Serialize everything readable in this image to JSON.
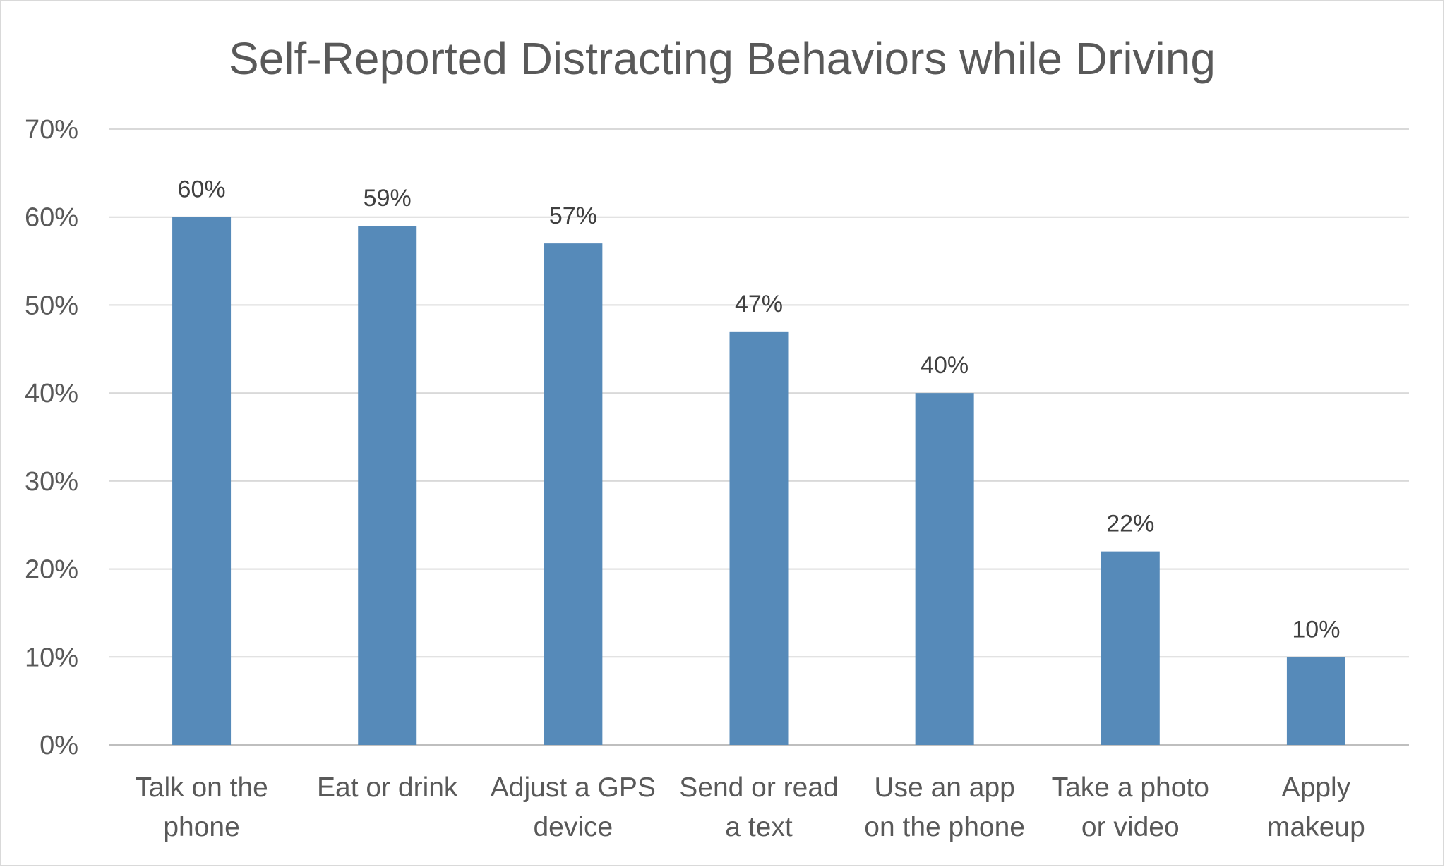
{
  "chart_data": {
    "type": "bar",
    "title": "Self-Reported Distracting Behaviors while Driving",
    "xlabel": "",
    "ylabel": "",
    "categories": [
      [
        "Talk on the",
        "phone"
      ],
      [
        "Eat or drink"
      ],
      [
        "Adjust a GPS",
        "device"
      ],
      [
        "Send or read",
        "a text"
      ],
      [
        "Use an app",
        "on the phone"
      ],
      [
        "Take a photo",
        "or video"
      ],
      [
        "Apply",
        "makeup"
      ]
    ],
    "values": [
      60,
      59,
      57,
      47,
      40,
      22,
      10
    ],
    "data_labels": [
      "60%",
      "59%",
      "57%",
      "47%",
      "40%",
      "22%",
      "10%"
    ],
    "ylim": [
      0,
      70
    ],
    "yticks": [
      0,
      10,
      20,
      30,
      40,
      50,
      60,
      70
    ],
    "ytick_labels": [
      "0%",
      "10%",
      "20%",
      "30%",
      "40%",
      "50%",
      "60%",
      "70%"
    ],
    "grid": true,
    "legend": "none",
    "colors": {
      "bar": "#568ab9",
      "grid": "#d9d9d9",
      "axis": "#bfbfbf"
    }
  }
}
